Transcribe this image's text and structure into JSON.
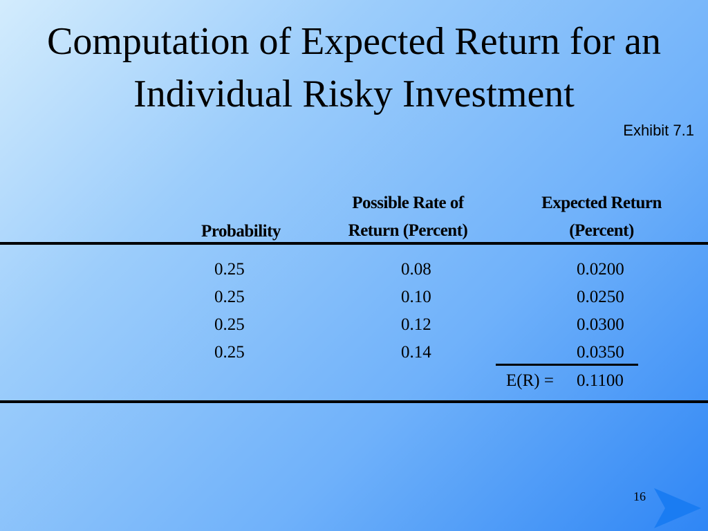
{
  "slide": {
    "title_line1": "Computation of Expected Return for an",
    "title_line2": "Individual Risky Investment",
    "exhibit": "Exhibit 7.1",
    "page_number": "16"
  },
  "table": {
    "headers": {
      "probability": "Probability",
      "rate_line1": "Possible Rate of",
      "rate_line2": "Return (Percent)",
      "expected_line1": "Expected Return",
      "expected_line2": "(Percent)"
    },
    "rows": [
      {
        "probability": "0.25",
        "rate": "0.08",
        "expected": "0.0200"
      },
      {
        "probability": "0.25",
        "rate": "0.10",
        "expected": "0.0250"
      },
      {
        "probability": "0.25",
        "rate": "0.12",
        "expected": "0.0300"
      },
      {
        "probability": "0.25",
        "rate": "0.14",
        "expected": "0.0350"
      }
    ],
    "total_label": "E(R) =",
    "total_value": "0.1100"
  },
  "colors": {
    "background_light": "#d3ecfd",
    "background_dark": "#2f86f5",
    "arrow": "#1a7cf2"
  },
  "icons": {
    "next_slide": "next-arrow-icon"
  }
}
